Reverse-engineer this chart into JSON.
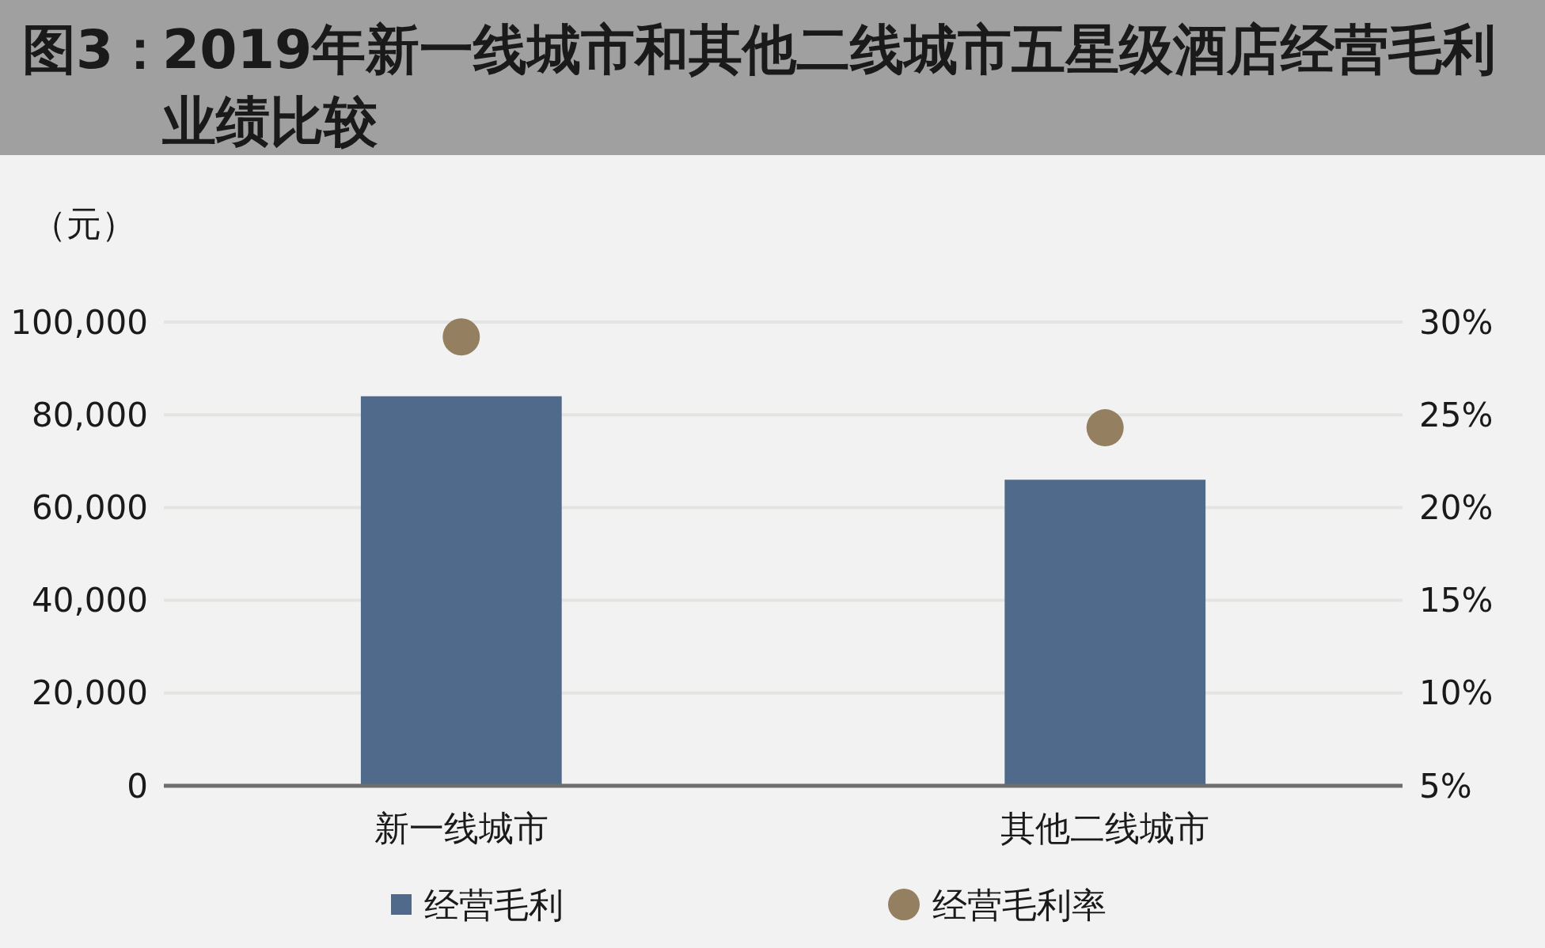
{
  "chart_data": {
    "type": "bar",
    "title": "图3：2019年新一线城市和其他二线城市五星级酒店经营毛利业绩比较",
    "ylabel": "（元）",
    "categories": [
      "新一线城市",
      "其他二线城市"
    ],
    "series": [
      {
        "name": "经营毛利",
        "color": "#4f6a8a",
        "values": [
          84000,
          66000
        ]
      },
      {
        "name": "经营毛利率",
        "type": "scatter",
        "axis": "y2",
        "marker": "circle",
        "color": "#948060",
        "values": [
          29.2,
          24.3
        ]
      }
    ],
    "ylim": [
      0,
      100000
    ],
    "yticks": [
      0,
      {
        "value": 20000,
        "label": "20,000"
      },
      {
        "value": 40000,
        "label": "40,000"
      },
      {
        "value": 60000,
        "label": "60,000"
      },
      {
        "value": 80000,
        "label": "80,000"
      },
      {
        "value": 100000,
        "label": "100,000"
      }
    ],
    "y2lim": [
      5,
      30
    ],
    "y2ticks": [
      {
        "value": 5,
        "label": "5%"
      },
      {
        "value": 10,
        "label": "10%"
      },
      {
        "value": 15,
        "label": "15%"
      },
      {
        "value": 20,
        "label": "20%"
      },
      {
        "value": 25,
        "label": "25%"
      },
      {
        "value": 30,
        "label": "30%"
      }
    ],
    "grid": "y",
    "legend": "bottom"
  }
}
